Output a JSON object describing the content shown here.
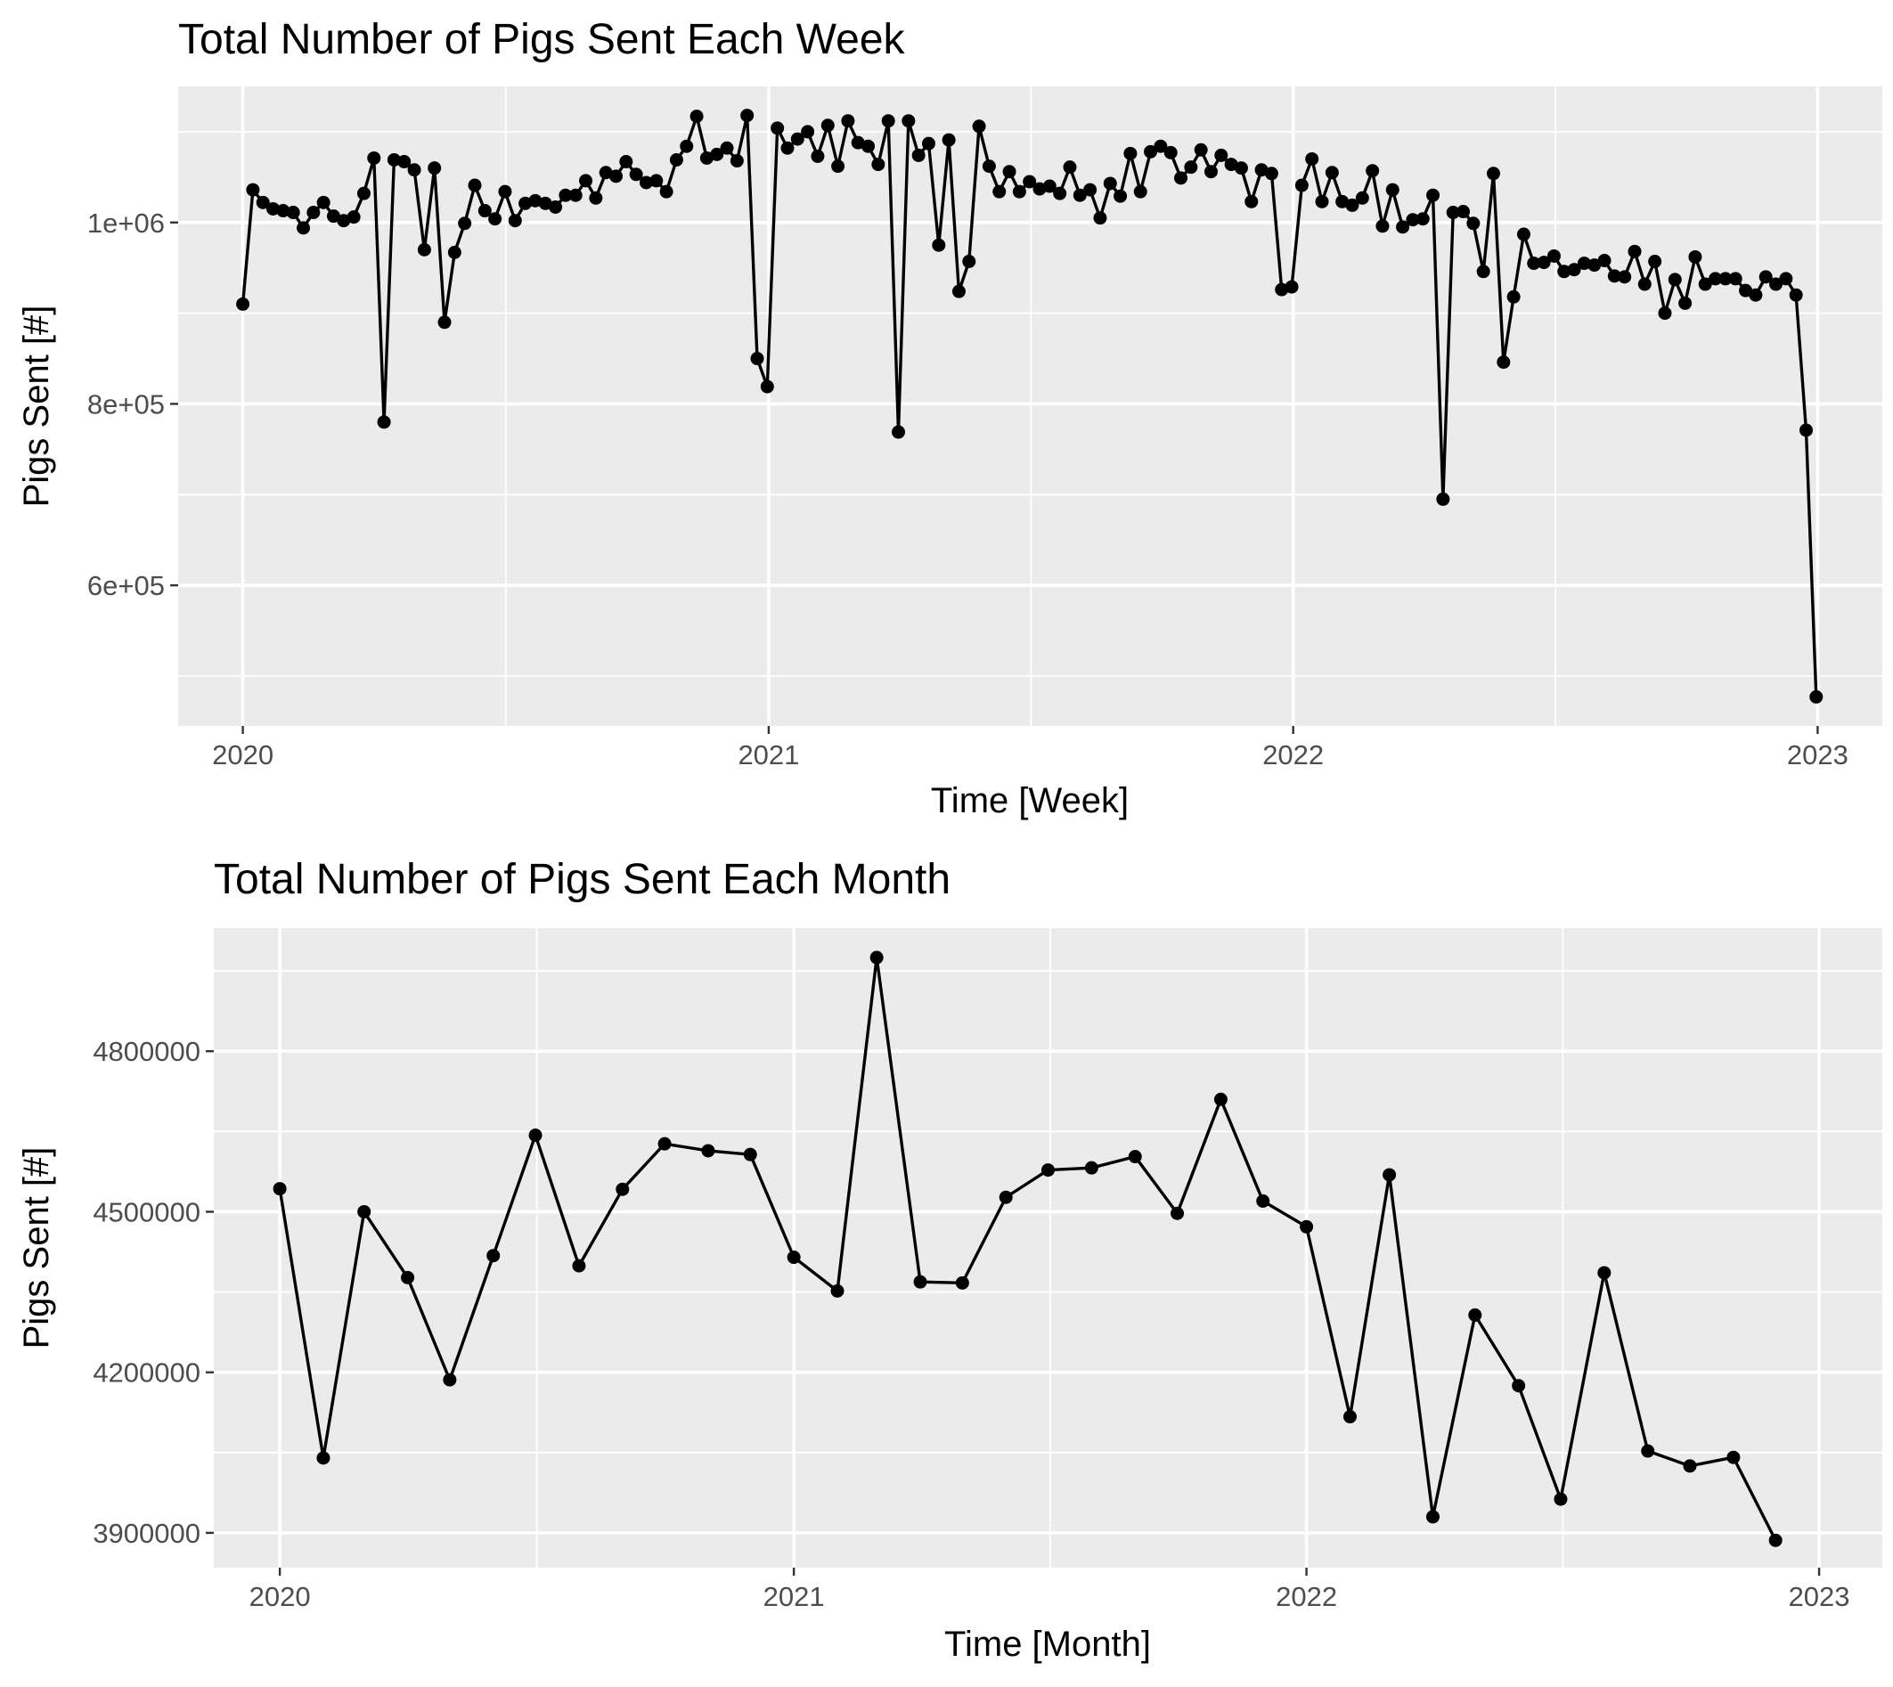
{
  "chart_data": [
    {
      "type": "line",
      "title": "Total Number of Pigs Sent Each Week",
      "xlabel": "Time [Week]",
      "ylabel": "Pigs Sent [#]",
      "x_axis": "date",
      "xlim": [
        "2019-11-17",
        "2023-02-15"
      ],
      "ylim": [
        445000,
        1150000
      ],
      "x_ticks": [
        {
          "value": "2020-01-01",
          "label": "2020"
        },
        {
          "value": "2021-01-01",
          "label": "2021"
        },
        {
          "value": "2022-01-01",
          "label": "2022"
        },
        {
          "value": "2023-01-01",
          "label": "2023"
        }
      ],
      "y_ticks": [
        {
          "value": 600000,
          "label": "6e+05"
        },
        {
          "value": 800000,
          "label": "8e+05"
        },
        {
          "value": 1000000,
          "label": "1e+06"
        }
      ],
      "grid": true,
      "legend": "none",
      "series_color": "#000000",
      "values": [
        910000,
        1036000,
        1022000,
        1015000,
        1013000,
        1011000,
        994000,
        1011000,
        1022000,
        1007000,
        1002000,
        1006000,
        1032000,
        1071000,
        780000,
        1069000,
        1067000,
        1058000,
        970000,
        1060000,
        890000,
        967000,
        999000,
        1041000,
        1013000,
        1004000,
        1034000,
        1002000,
        1021000,
        1024000,
        1021000,
        1017000,
        1030000,
        1030000,
        1046000,
        1027000,
        1055000,
        1051000,
        1067000,
        1053000,
        1044000,
        1046000,
        1034000,
        1069000,
        1084000,
        1117000,
        1071000,
        1075000,
        1082000,
        1068000,
        1118000,
        850000,
        819000,
        1104000,
        1082000,
        1092000,
        1100000,
        1073000,
        1107000,
        1062000,
        1112000,
        1088000,
        1084000,
        1064000,
        1112000,
        769000,
        1112000,
        1074000,
        1087000,
        975000,
        1091000,
        924000,
        957000,
        1106000,
        1062000,
        1034000,
        1056000,
        1034000,
        1045000,
        1037000,
        1040000,
        1032000,
        1061000,
        1030000,
        1036000,
        1005000,
        1043000,
        1029000,
        1076000,
        1034000,
        1078000,
        1084000,
        1077000,
        1049000,
        1061000,
        1080000,
        1056000,
        1074000,
        1064000,
        1060000,
        1023000,
        1058000,
        1054000,
        926000,
        929000,
        1041000,
        1070000,
        1023000,
        1055000,
        1023000,
        1019000,
        1027000,
        1057000,
        996000,
        1036000,
        995000,
        1003000,
        1004000,
        1030000,
        695000,
        1011000,
        1012000,
        999000,
        946000,
        1054000,
        846000,
        918000,
        987000,
        955000,
        956000,
        963000,
        946000,
        948000,
        955000,
        953000,
        958000,
        941000,
        940000,
        968000,
        932000,
        957000,
        900000,
        937000,
        911000,
        962000,
        932000,
        938000,
        938000,
        938000,
        925000,
        920000,
        940000,
        932000,
        938000,
        920000,
        771000,
        477000
      ]
    },
    {
      "type": "line",
      "title": "Total Number of Pigs Sent Each Month",
      "xlabel": "Time [Month]",
      "ylabel": "Pigs Sent [#]",
      "x_axis": "date",
      "xlim": [
        "2019-11-15",
        "2023-02-15"
      ],
      "ylim": [
        3835000,
        5030000
      ],
      "x_ticks": [
        {
          "value": "2020-01-01",
          "label": "2020"
        },
        {
          "value": "2021-01-01",
          "label": "2021"
        },
        {
          "value": "2022-01-01",
          "label": "2022"
        },
        {
          "value": "2023-01-01",
          "label": "2023"
        }
      ],
      "y_ticks": [
        {
          "value": 3900000,
          "label": "3900000"
        },
        {
          "value": 4200000,
          "label": "4200000"
        },
        {
          "value": 4500000,
          "label": "4500000"
        },
        {
          "value": 4800000,
          "label": "4800000"
        }
      ],
      "grid": true,
      "legend": "none",
      "series_color": "#000000",
      "x": [
        "2020-01-01",
        "2020-02-01",
        "2020-03-01",
        "2020-04-01",
        "2020-05-01",
        "2020-06-01",
        "2020-07-01",
        "2020-08-01",
        "2020-09-01",
        "2020-10-01",
        "2020-11-01",
        "2020-12-01",
        "2021-01-01",
        "2021-02-01",
        "2021-03-01",
        "2021-04-01",
        "2021-05-01",
        "2021-06-01",
        "2021-07-01",
        "2021-08-01",
        "2021-09-01",
        "2021-10-01",
        "2021-11-01",
        "2021-12-01",
        "2022-01-01",
        "2022-02-01",
        "2022-03-01",
        "2022-04-01",
        "2022-05-01",
        "2022-06-01",
        "2022-07-01",
        "2022-08-01",
        "2022-09-01",
        "2022-10-01",
        "2022-11-01",
        "2022-12-01"
      ],
      "values": [
        4543000,
        4040000,
        4500000,
        4377000,
        4186000,
        4418000,
        4643000,
        4399000,
        4542000,
        4627000,
        4614000,
        4607000,
        4415000,
        4352000,
        4975000,
        4369000,
        4367000,
        4527000,
        4578000,
        4582000,
        4603000,
        4497000,
        4710000,
        4520000,
        4472000,
        4117000,
        4569000,
        3930000,
        4307000,
        4175000,
        3963000,
        4386000,
        4053000,
        4025000,
        4041000,
        3886000
      ]
    }
  ]
}
